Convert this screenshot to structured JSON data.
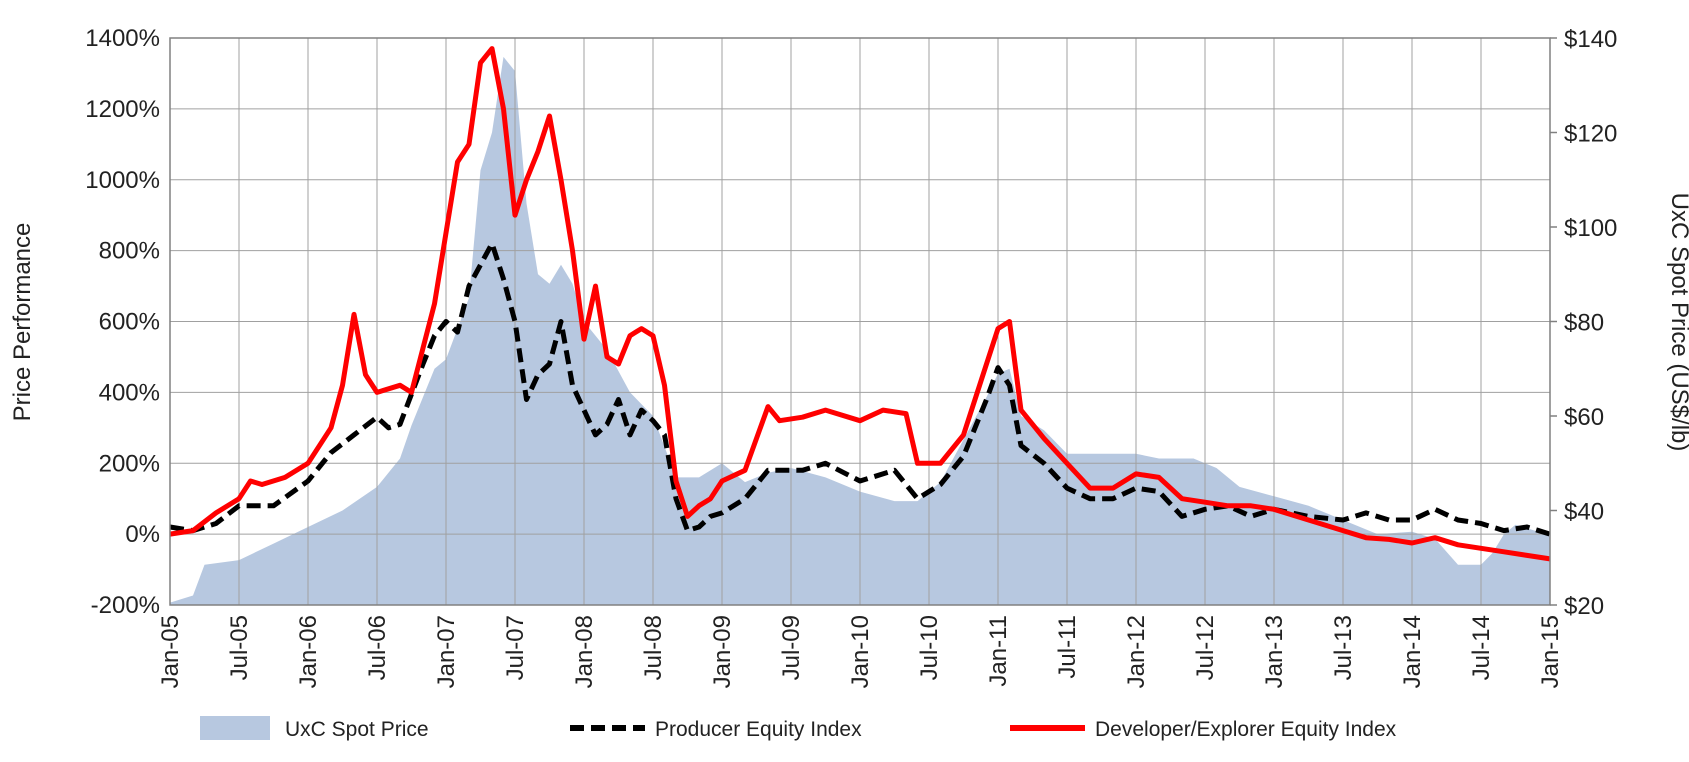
{
  "chart_data": {
    "type": "line",
    "xlabel": "",
    "ylabel_left": "Price Performance",
    "ylabel_right": "UxC Spot Price (US$/lb)",
    "x_tick_labels": [
      "Jan-05",
      "Jul-05",
      "Jan-06",
      "Jul-06",
      "Jan-07",
      "Jul-07",
      "Jan-08",
      "Jul-08",
      "Jan-09",
      "Jul-09",
      "Jan-10",
      "Jul-10",
      "Jan-11",
      "Jul-11",
      "Jan-12",
      "Jul-12",
      "Jan-13",
      "Jul-13",
      "Jan-14",
      "Jul-14",
      "Jan-15"
    ],
    "y_left_tick_labels": [
      "1400%",
      "1200%",
      "1000%",
      "800%",
      "600%",
      "400%",
      "200%",
      "0%",
      "-200%"
    ],
    "y_left_ticks": [
      1400,
      1200,
      1000,
      800,
      600,
      400,
      200,
      0,
      -200
    ],
    "ylim_left": [
      -200,
      1400
    ],
    "y_right_tick_labels": [
      "$140",
      "$120",
      "$100",
      "$80",
      "$60",
      "$40",
      "$20"
    ],
    "y_right_ticks": [
      140,
      120,
      100,
      80,
      60,
      40,
      20
    ],
    "ylim_right": [
      20,
      140
    ],
    "grid": true,
    "legend_position": "bottom",
    "series": [
      {
        "name": "UxC Spot Price",
        "kind": "area",
        "axis": "right",
        "color": "#b7c8e0",
        "points": [
          [
            "2005-01",
            20.5
          ],
          [
            "2005-03",
            22
          ],
          [
            "2005-04",
            28.5
          ],
          [
            "2005-07",
            29.5
          ],
          [
            "2005-10",
            33
          ],
          [
            "2006-01",
            36.5
          ],
          [
            "2006-04",
            40
          ],
          [
            "2006-07",
            45
          ],
          [
            "2006-09",
            51
          ],
          [
            "2006-10",
            58
          ],
          [
            "2006-12",
            70
          ],
          [
            "2007-01",
            72
          ],
          [
            "2007-03",
            85
          ],
          [
            "2007-04",
            112
          ],
          [
            "2007-05",
            120
          ],
          [
            "2007-06",
            136
          ],
          [
            "2007-07",
            133
          ],
          [
            "2007-08",
            105
          ],
          [
            "2007-09",
            90
          ],
          [
            "2007-10",
            88
          ],
          [
            "2007-11",
            92
          ],
          [
            "2007-12",
            88
          ],
          [
            "2008-01",
            80
          ],
          [
            "2008-03",
            74
          ],
          [
            "2008-05",
            65
          ],
          [
            "2008-07",
            60
          ],
          [
            "2008-09",
            47
          ],
          [
            "2008-11",
            47
          ],
          [
            "2009-01",
            50
          ],
          [
            "2009-03",
            46
          ],
          [
            "2009-05",
            48
          ],
          [
            "2009-07",
            49
          ],
          [
            "2009-10",
            47
          ],
          [
            "2010-01",
            44
          ],
          [
            "2010-04",
            42
          ],
          [
            "2010-06",
            42
          ],
          [
            "2010-08",
            46
          ],
          [
            "2010-10",
            55
          ],
          [
            "2010-12",
            64
          ],
          [
            "2011-01",
            69
          ],
          [
            "2011-02",
            70
          ],
          [
            "2011-03",
            60
          ],
          [
            "2011-05",
            57
          ],
          [
            "2011-07",
            52
          ],
          [
            "2011-09",
            52
          ],
          [
            "2012-01",
            52
          ],
          [
            "2012-03",
            51
          ],
          [
            "2012-06",
            51
          ],
          [
            "2012-08",
            49
          ],
          [
            "2012-10",
            45
          ],
          [
            "2013-01",
            43
          ],
          [
            "2013-04",
            41
          ],
          [
            "2013-07",
            38
          ],
          [
            "2013-10",
            35
          ],
          [
            "2014-01",
            35.5
          ],
          [
            "2014-03",
            34
          ],
          [
            "2014-05",
            28.5
          ],
          [
            "2014-07",
            28.5
          ],
          [
            "2014-08",
            31
          ],
          [
            "2014-09",
            35
          ],
          [
            "2014-10",
            37
          ],
          [
            "2014-12",
            35.5
          ],
          [
            "2015-01",
            35
          ]
        ]
      },
      {
        "name": "Producer Equity Index",
        "kind": "line",
        "axis": "left",
        "color": "#000000",
        "points": [
          [
            "2005-01",
            20
          ],
          [
            "2005-03",
            10
          ],
          [
            "2005-05",
            30
          ],
          [
            "2005-07",
            80
          ],
          [
            "2005-10",
            80
          ],
          [
            "2006-01",
            150
          ],
          [
            "2006-03",
            230
          ],
          [
            "2006-05",
            280
          ],
          [
            "2006-07",
            330
          ],
          [
            "2006-08",
            300
          ],
          [
            "2006-09",
            310
          ],
          [
            "2006-11",
            480
          ],
          [
            "2006-12",
            560
          ],
          [
            "2007-01",
            600
          ],
          [
            "2007-02",
            570
          ],
          [
            "2007-03",
            700
          ],
          [
            "2007-05",
            820
          ],
          [
            "2007-06",
            720
          ],
          [
            "2007-07",
            600
          ],
          [
            "2007-08",
            380
          ],
          [
            "2007-09",
            450
          ],
          [
            "2007-10",
            480
          ],
          [
            "2007-11",
            600
          ],
          [
            "2007-12",
            420
          ],
          [
            "2008-01",
            350
          ],
          [
            "2008-02",
            280
          ],
          [
            "2008-03",
            310
          ],
          [
            "2008-04",
            380
          ],
          [
            "2008-05",
            280
          ],
          [
            "2008-06",
            350
          ],
          [
            "2008-07",
            320
          ],
          [
            "2008-08",
            280
          ],
          [
            "2008-09",
            100
          ],
          [
            "2008-10",
            10
          ],
          [
            "2008-11",
            20
          ],
          [
            "2008-12",
            50
          ],
          [
            "2009-01",
            60
          ],
          [
            "2009-03",
            100
          ],
          [
            "2009-05",
            180
          ],
          [
            "2009-08",
            180
          ],
          [
            "2009-10",
            200
          ],
          [
            "2010-01",
            150
          ],
          [
            "2010-04",
            180
          ],
          [
            "2010-06",
            100
          ],
          [
            "2010-08",
            140
          ],
          [
            "2010-10",
            220
          ],
          [
            "2010-12",
            380
          ],
          [
            "2011-01",
            470
          ],
          [
            "2011-02",
            420
          ],
          [
            "2011-03",
            250
          ],
          [
            "2011-05",
            200
          ],
          [
            "2011-07",
            130
          ],
          [
            "2011-09",
            100
          ],
          [
            "2011-11",
            100
          ],
          [
            "2012-01",
            130
          ],
          [
            "2012-03",
            120
          ],
          [
            "2012-05",
            50
          ],
          [
            "2012-07",
            70
          ],
          [
            "2012-09",
            80
          ],
          [
            "2012-11",
            50
          ],
          [
            "2013-01",
            70
          ],
          [
            "2013-04",
            50
          ],
          [
            "2013-07",
            40
          ],
          [
            "2013-09",
            60
          ],
          [
            "2013-11",
            40
          ],
          [
            "2014-01",
            40
          ],
          [
            "2014-03",
            70
          ],
          [
            "2014-05",
            40
          ],
          [
            "2014-07",
            30
          ],
          [
            "2014-09",
            10
          ],
          [
            "2014-11",
            20
          ],
          [
            "2015-01",
            0
          ]
        ]
      },
      {
        "name": "Developer/Explorer Equity Index",
        "kind": "line",
        "axis": "left",
        "color": "#ff0000",
        "points": [
          [
            "2005-01",
            0
          ],
          [
            "2005-03",
            10
          ],
          [
            "2005-05",
            60
          ],
          [
            "2005-07",
            100
          ],
          [
            "2005-08",
            150
          ],
          [
            "2005-09",
            140
          ],
          [
            "2005-11",
            160
          ],
          [
            "2006-01",
            200
          ],
          [
            "2006-03",
            300
          ],
          [
            "2006-04",
            420
          ],
          [
            "2006-05",
            620
          ],
          [
            "2006-06",
            450
          ],
          [
            "2006-07",
            400
          ],
          [
            "2006-09",
            420
          ],
          [
            "2006-10",
            400
          ],
          [
            "2006-12",
            650
          ],
          [
            "2007-01",
            850
          ],
          [
            "2007-02",
            1050
          ],
          [
            "2007-03",
            1100
          ],
          [
            "2007-04",
            1330
          ],
          [
            "2007-05",
            1370
          ],
          [
            "2007-06",
            1200
          ],
          [
            "2007-07",
            900
          ],
          [
            "2007-08",
            1000
          ],
          [
            "2007-09",
            1080
          ],
          [
            "2007-10",
            1180
          ],
          [
            "2007-11",
            1000
          ],
          [
            "2007-12",
            800
          ],
          [
            "2008-01",
            550
          ],
          [
            "2008-02",
            700
          ],
          [
            "2008-03",
            500
          ],
          [
            "2008-04",
            480
          ],
          [
            "2008-05",
            560
          ],
          [
            "2008-06",
            580
          ],
          [
            "2008-07",
            560
          ],
          [
            "2008-08",
            420
          ],
          [
            "2008-09",
            150
          ],
          [
            "2008-10",
            50
          ],
          [
            "2008-11",
            80
          ],
          [
            "2008-12",
            100
          ],
          [
            "2009-01",
            150
          ],
          [
            "2009-03",
            180
          ],
          [
            "2009-05",
            360
          ],
          [
            "2009-06",
            320
          ],
          [
            "2009-08",
            330
          ],
          [
            "2009-10",
            350
          ],
          [
            "2010-01",
            320
          ],
          [
            "2010-03",
            350
          ],
          [
            "2010-05",
            340
          ],
          [
            "2010-06",
            200
          ],
          [
            "2010-08",
            200
          ],
          [
            "2010-10",
            280
          ],
          [
            "2010-12",
            480
          ],
          [
            "2011-01",
            580
          ],
          [
            "2011-02",
            600
          ],
          [
            "2011-03",
            350
          ],
          [
            "2011-05",
            270
          ],
          [
            "2011-07",
            200
          ],
          [
            "2011-09",
            130
          ],
          [
            "2011-11",
            130
          ],
          [
            "2012-01",
            170
          ],
          [
            "2012-03",
            160
          ],
          [
            "2012-05",
            100
          ],
          [
            "2012-07",
            90
          ],
          [
            "2012-09",
            80
          ],
          [
            "2012-11",
            80
          ],
          [
            "2013-01",
            70
          ],
          [
            "2013-04",
            40
          ],
          [
            "2013-07",
            10
          ],
          [
            "2013-09",
            -10
          ],
          [
            "2013-11",
            -15
          ],
          [
            "2014-01",
            -25
          ],
          [
            "2014-03",
            -10
          ],
          [
            "2014-05",
            -30
          ],
          [
            "2014-07",
            -40
          ],
          [
            "2014-09",
            -50
          ],
          [
            "2014-11",
            -60
          ],
          [
            "2015-01",
            -70
          ]
        ]
      }
    ]
  }
}
